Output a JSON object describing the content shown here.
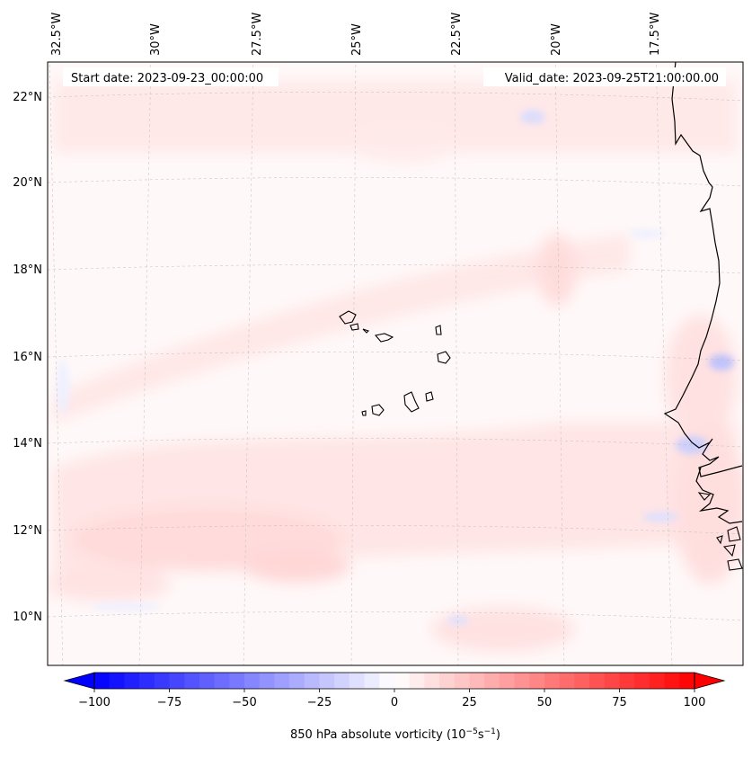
{
  "header": {
    "start_date": "Start date: 2023-09-23_00:00:00",
    "valid_date": "Valid_date: 2023-09-25T21:00:00.00"
  },
  "axes": {
    "lon_labels": [
      "32.5°W",
      "30°W",
      "27.5°W",
      "25°W",
      "22.5°W",
      "20°W",
      "17.5°W"
    ],
    "lat_labels": [
      "22°N",
      "20°N",
      "18°N",
      "16°N",
      "14°N",
      "12°N",
      "10°N"
    ]
  },
  "colorbar": {
    "label_prefix": "850 hPa absolute vorticity (10",
    "label_exp1": "−5",
    "label_mid": "s",
    "label_exp2": "−1",
    "label_suffix": ")",
    "ticks": [
      "−100",
      "−75",
      "−50",
      "−25",
      "0",
      "25",
      "50",
      "75",
      "100"
    ],
    "vmin": -100,
    "vmax": 100,
    "colormap": "bwr",
    "extend": "both"
  },
  "colors": {
    "negative": "#0000ff",
    "zero": "#ffffff",
    "positive": "#ff0000",
    "coastline": "#000000"
  }
}
